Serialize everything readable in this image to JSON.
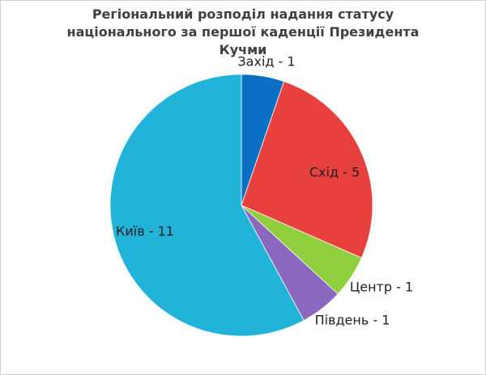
{
  "chart_data": {
    "type": "pie",
    "title": "Регіональний розподіл надання статусу національного за першої каденції Президента Кучми",
    "values": [
      1,
      5,
      1,
      1,
      11
    ],
    "value_labels": [
      "Захід - 1",
      "Схід - 5",
      "Центр - 1",
      "Південь - 1",
      "Київ - 11"
    ],
    "colors": [
      "#0b6fc4",
      "#e8403f",
      "#8fcf3e",
      "#8a68c0",
      "#22b3d8"
    ]
  }
}
